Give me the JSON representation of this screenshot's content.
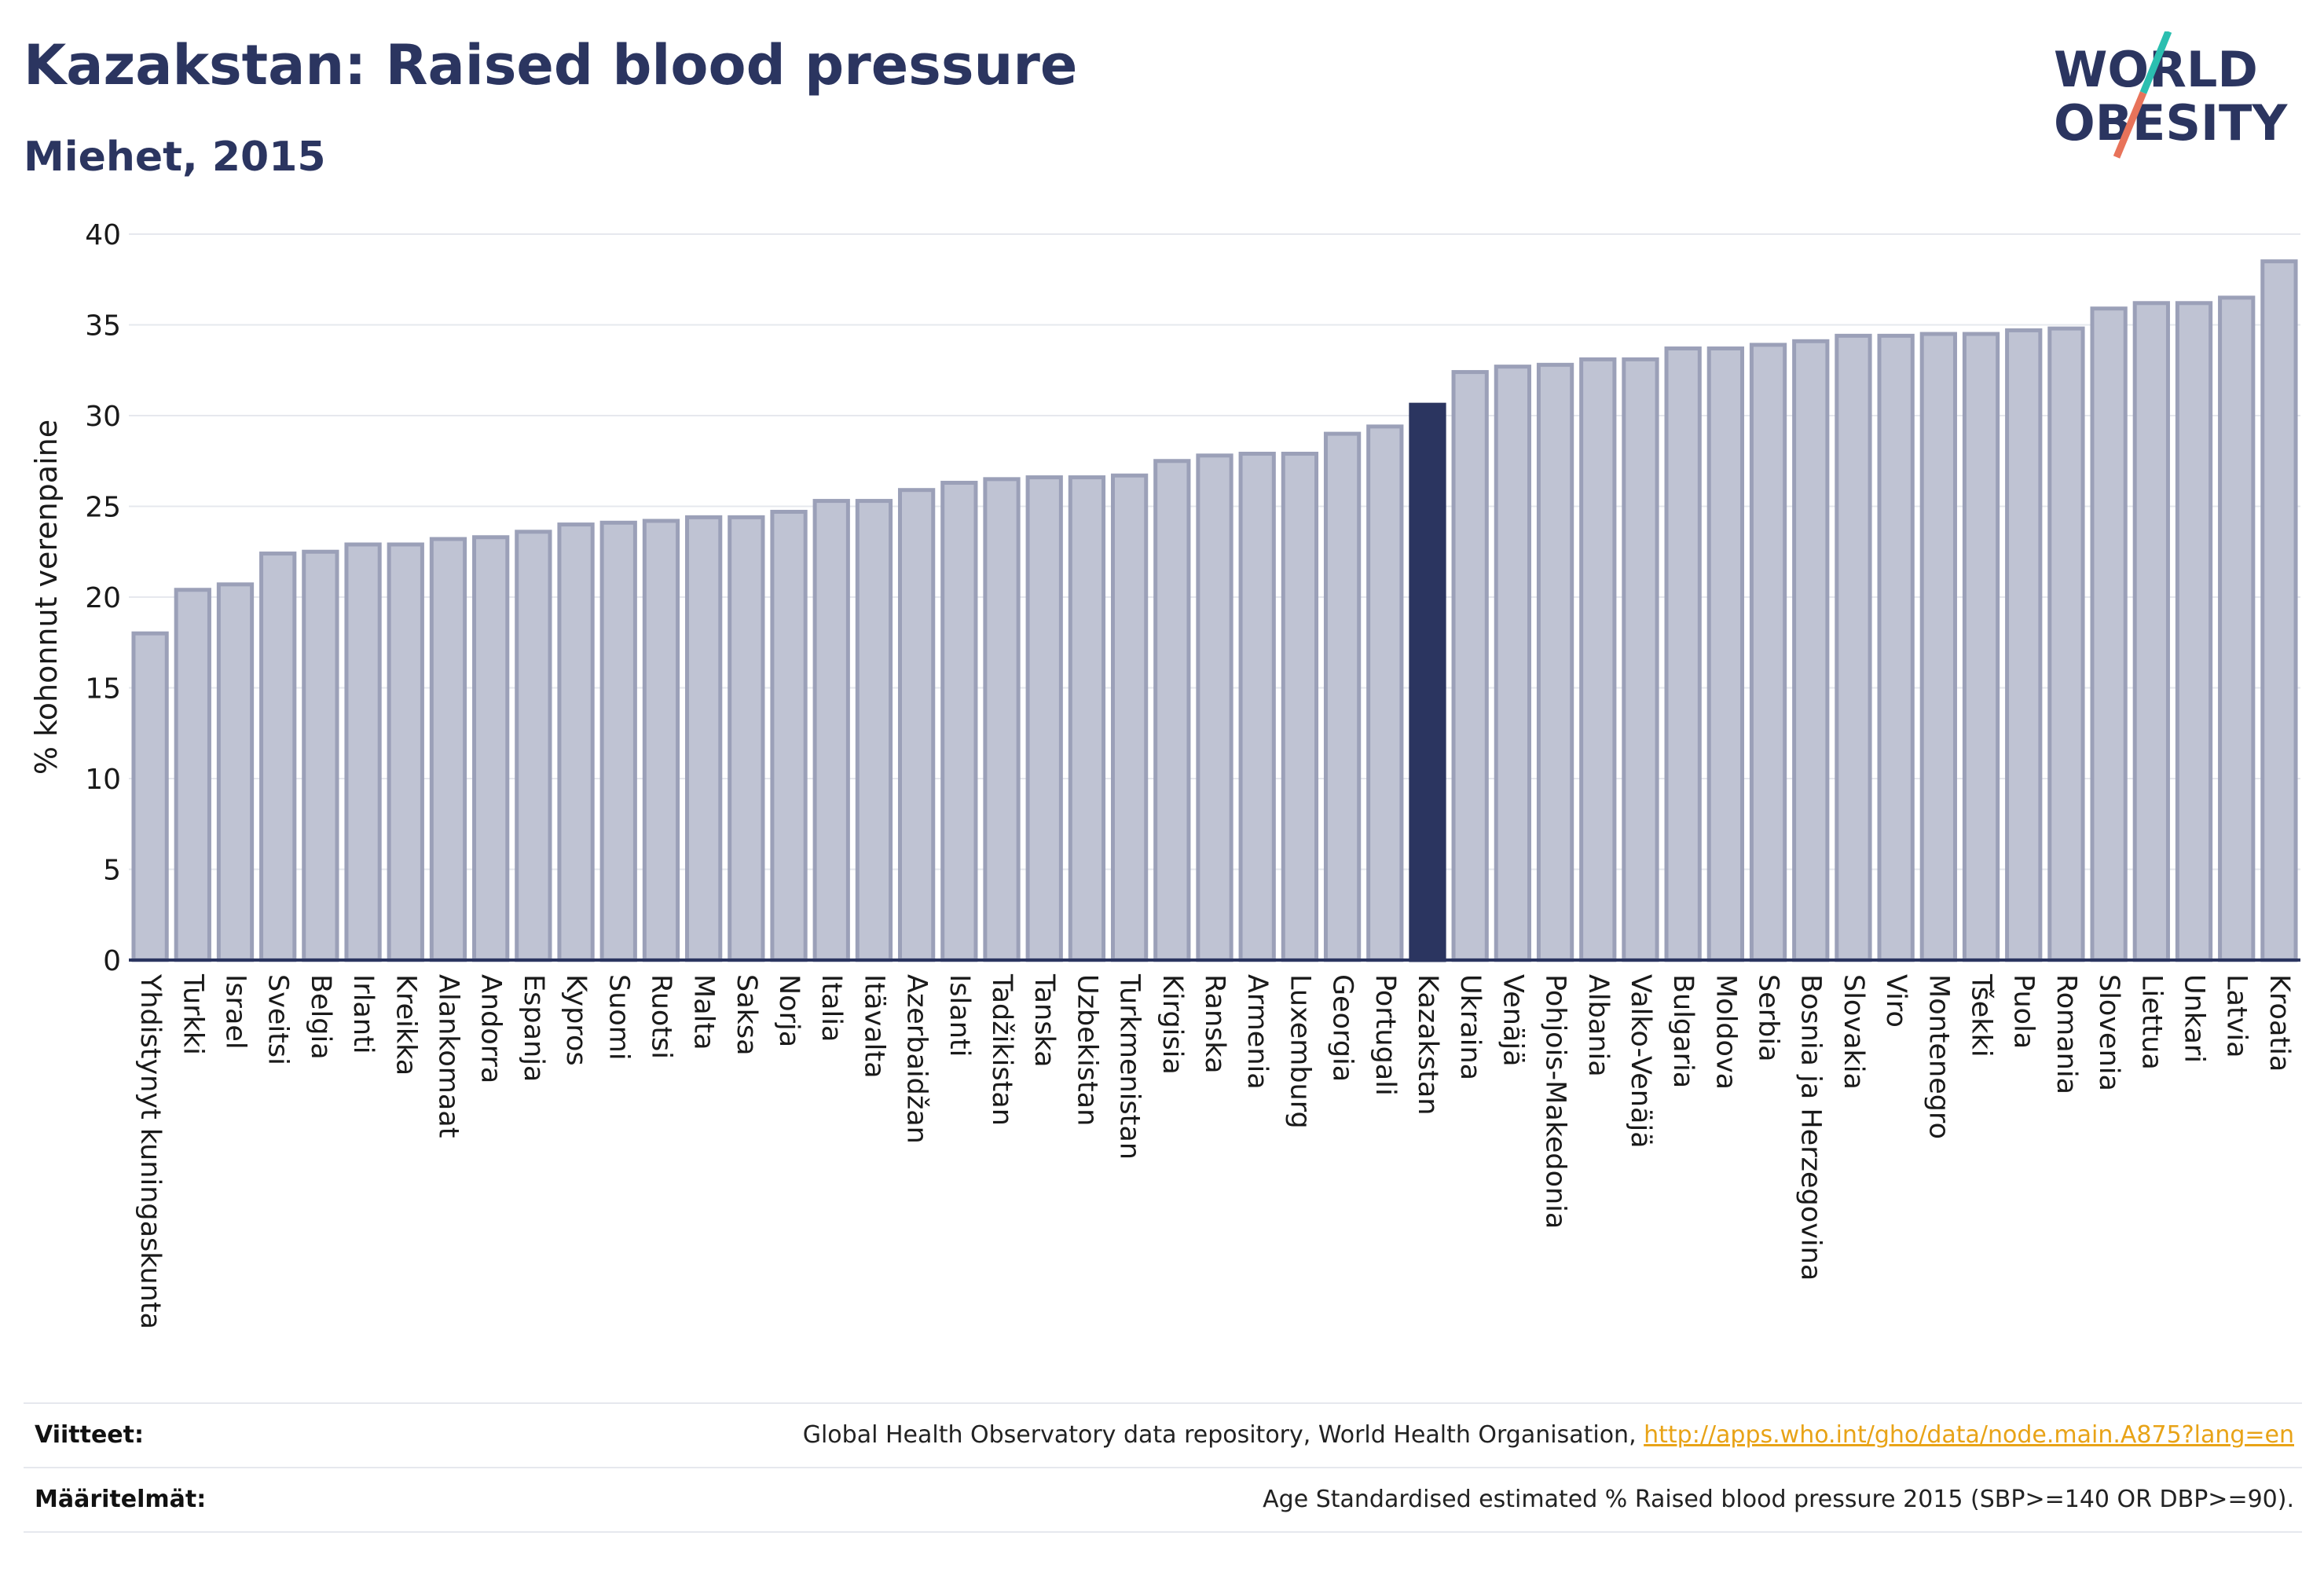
{
  "header": {
    "title": "Kazakstan: Raised blood pressure",
    "subtitle": "Miehet, 2015"
  },
  "logo": {
    "line1": "WORLD",
    "line2": "OBESITY",
    "colors": {
      "text": "#2b3560",
      "slash_teal": "#2bbfb0",
      "slash_coral": "#e8735a"
    }
  },
  "colors": {
    "bar_fill": "#bfc3d3",
    "bar_stroke": "#9ba0b8",
    "highlight": "#2b3560",
    "grid": "#e6e8ee",
    "axis": "#2b3560"
  },
  "chart_data": {
    "type": "bar",
    "title": "Kazakstan: Raised blood pressure",
    "subtitle": "Miehet, 2015",
    "xlabel": "",
    "ylabel": "% kohonnut verenpaine",
    "ylim": [
      0,
      40
    ],
    "yticks": [
      0,
      5,
      10,
      15,
      20,
      25,
      30,
      35,
      40
    ],
    "grid": true,
    "highlight": "Kazakstan",
    "categories": [
      "Yhdistynyt kuningaskunta",
      "Turkki",
      "Israel",
      "Sveitsi",
      "Belgia",
      "Irlanti",
      "Kreikka",
      "Alankomaat",
      "Andorra",
      "Espanja",
      "Kypros",
      "Suomi",
      "Ruotsi",
      "Malta",
      "Saksa",
      "Norja",
      "Italia",
      "Itävalta",
      "Azerbaidžan",
      "Islanti",
      "Tadžikistan",
      "Tanska",
      "Uzbekistan",
      "Turkmenistan",
      "Kirgisia",
      "Ranska",
      "Armenia",
      "Luxemburg",
      "Georgia",
      "Portugali",
      "Kazakstan",
      "Ukraina",
      "Venäjä",
      "Pohjois-Makedonia",
      "Albania",
      "Valko-Venäjä",
      "Bulgaria",
      "Moldova",
      "Serbia",
      "Bosnia ja Herzegovina",
      "Slovakia",
      "Viro",
      "Montenegro",
      "Tšekki",
      "Puola",
      "Romania",
      "Slovenia",
      "Liettua",
      "Unkari",
      "Latvia",
      "Kroatia"
    ],
    "values": [
      18.0,
      20.4,
      20.7,
      22.4,
      22.5,
      22.9,
      22.9,
      23.2,
      23.3,
      23.6,
      24.0,
      24.1,
      24.2,
      24.4,
      24.4,
      24.7,
      25.3,
      25.3,
      25.9,
      26.3,
      26.5,
      26.6,
      26.6,
      26.7,
      27.5,
      27.8,
      27.9,
      27.9,
      29.0,
      29.4,
      30.6,
      32.4,
      32.7,
      32.8,
      33.1,
      33.1,
      33.7,
      33.7,
      33.9,
      34.1,
      34.4,
      34.4,
      34.5,
      34.5,
      34.7,
      34.8,
      35.9,
      36.2,
      36.2,
      36.5,
      38.5
    ]
  },
  "footer": {
    "references_label": "Viitteet:",
    "references_text": "Global Health Observatory data repository, World Health Organisation, ",
    "references_link": "http://apps.who.int/gho/data/node.main.A875?lang=en",
    "definitions_label": "Määritelmät:",
    "definitions_text": "Age Standardised estimated % Raised blood pressure 2015 (SBP>=140 OR DBP>=90)."
  }
}
